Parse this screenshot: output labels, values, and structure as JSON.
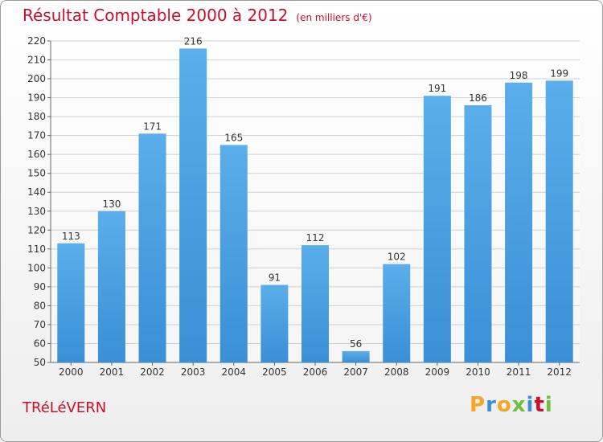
{
  "header": {
    "title": "Résultat Comptable 2000 à 2012",
    "unit": "(en milliers d'€)"
  },
  "footer": {
    "commune": "TRéLéVERN",
    "logo_text": "Proxiti"
  },
  "colors": {
    "bar": "#3a8fd6",
    "bar_top": "#5aaeea",
    "title": "#c8102e",
    "grid": "#d0d0d0"
  },
  "chart_data": {
    "type": "bar",
    "title": "Résultat Comptable 2000 à 2012",
    "ylabel": "(en milliers d'€)",
    "xlabel": "",
    "categories": [
      "2000",
      "2001",
      "2002",
      "2003",
      "2004",
      "2005",
      "2006",
      "2007",
      "2008",
      "2009",
      "2010",
      "2011",
      "2012"
    ],
    "values": [
      113,
      130,
      171,
      216,
      165,
      91,
      112,
      56,
      102,
      191,
      186,
      198,
      199
    ],
    "ylim": [
      50,
      220
    ],
    "yticks": [
      50,
      60,
      70,
      80,
      90,
      100,
      110,
      120,
      130,
      140,
      150,
      160,
      170,
      180,
      190,
      200,
      210,
      220
    ],
    "grid": true
  }
}
